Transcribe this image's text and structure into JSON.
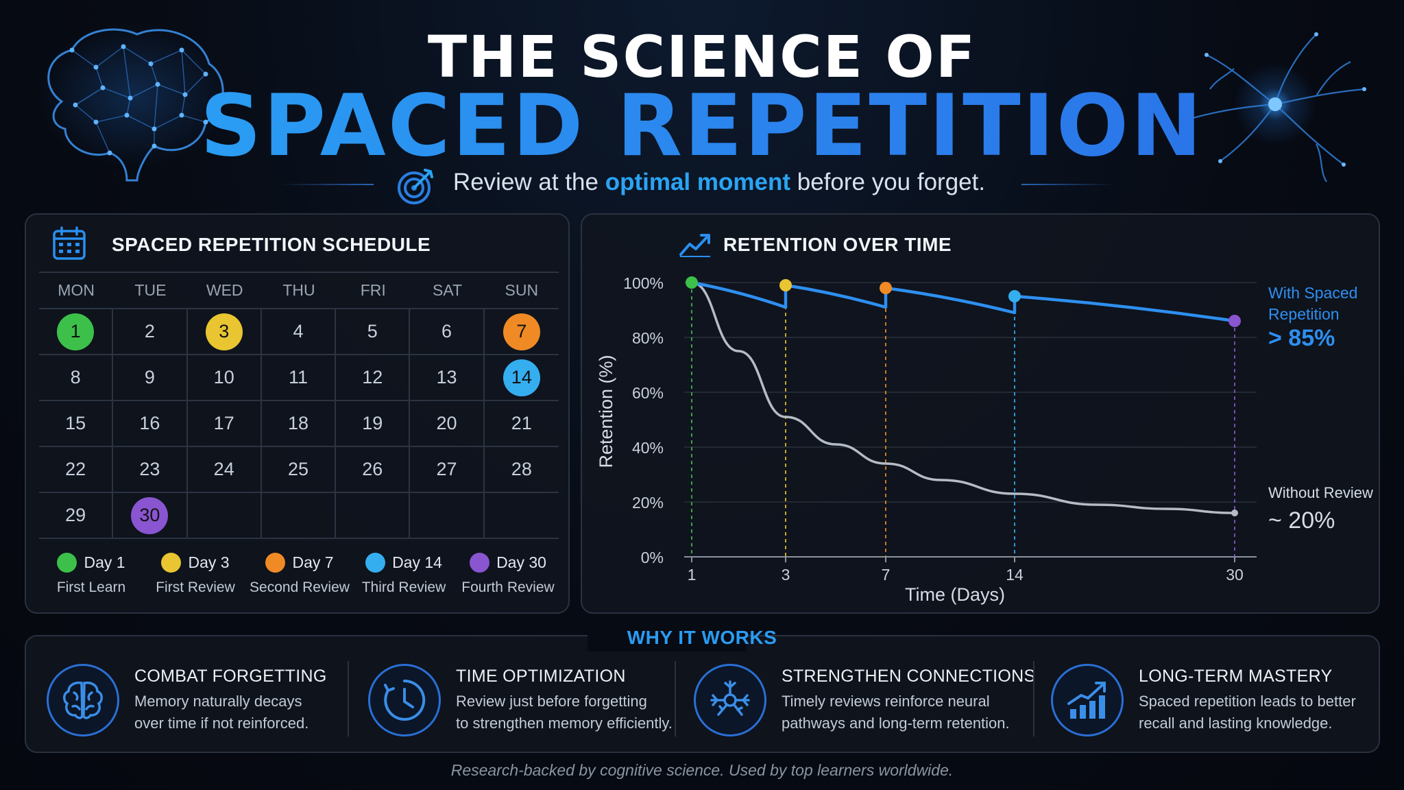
{
  "header": {
    "title_top": "THE SCIENCE OF",
    "title_main": "SPACED REPETITION",
    "tagline_pre": "Review at the ",
    "tagline_highlight": "optimal moment",
    "tagline_post": " before you forget.",
    "icons": [
      "brain-network-icon",
      "neuron-icon",
      "target-icon"
    ]
  },
  "schedule": {
    "title": "SPACED REPETITION SCHEDULE",
    "icon": "calendar-icon",
    "weekdays": [
      "MON",
      "TUE",
      "WED",
      "THU",
      "FRI",
      "SAT",
      "SUN"
    ],
    "weeks": [
      [
        "1",
        "2",
        "3",
        "4",
        "5",
        "6",
        "7"
      ],
      [
        "8",
        "9",
        "10",
        "11",
        "12",
        "13",
        "14"
      ],
      [
        "15",
        "16",
        "17",
        "18",
        "19",
        "20",
        "21"
      ],
      [
        "22",
        "23",
        "24",
        "25",
        "26",
        "27",
        "28"
      ],
      [
        "29",
        "30",
        "",
        "",
        "",
        "",
        ""
      ]
    ],
    "highlights": {
      "1": "#3cc04a",
      "3": "#e8c531",
      "7": "#f08a25",
      "14": "#35aef0",
      "30": "#8a55d0"
    },
    "legend": [
      {
        "day": "Day 1",
        "label": "First Learn",
        "color": "#3cc04a"
      },
      {
        "day": "Day 3",
        "label": "First Review",
        "color": "#e8c531"
      },
      {
        "day": "Day 7",
        "label": "Second Review",
        "color": "#f08a25"
      },
      {
        "day": "Day 14",
        "label": "Third Review",
        "color": "#35aef0"
      },
      {
        "day": "Day 30",
        "label": "Fourth Review",
        "color": "#8a55d0"
      }
    ]
  },
  "chart_data": {
    "type": "line",
    "title": "RETENTION OVER TIME",
    "icon": "trend-up-icon",
    "xlabel": "Time (Days)",
    "ylabel": "Retention (%)",
    "x_ticks": [
      "1",
      "3",
      "7",
      "14",
      "30"
    ],
    "y_ticks": [
      "0%",
      "20%",
      "40%",
      "60%",
      "80%",
      "100%"
    ],
    "ylim": [
      0,
      100
    ],
    "grid": true,
    "series": [
      {
        "name": "With Spaced Repetition",
        "color": "#2e8ff0",
        "review_days": [
          1,
          3,
          7,
          14,
          30
        ],
        "review_colors": [
          "#3cc04a",
          "#e8c531",
          "#f08a25",
          "#35aef0",
          "#8a55d0"
        ],
        "points": [
          [
            1,
            100
          ],
          [
            3,
            91
          ],
          [
            3,
            99
          ],
          [
            7,
            91
          ],
          [
            7,
            98
          ],
          [
            14,
            89
          ],
          [
            14,
            95
          ],
          [
            30,
            86
          ]
        ]
      },
      {
        "name": "Without Review",
        "color": "#b5bcc6",
        "points": [
          [
            1,
            100
          ],
          [
            2,
            75
          ],
          [
            3,
            51
          ],
          [
            5,
            41
          ],
          [
            7,
            34
          ],
          [
            10,
            28
          ],
          [
            14,
            23
          ],
          [
            20,
            19
          ],
          [
            25,
            17.5
          ],
          [
            30,
            16
          ]
        ]
      }
    ],
    "annotations": {
      "blue_label_1": "With Spaced",
      "blue_label_2": "Repetition",
      "blue_value": "> 85%",
      "grey_label": "Without Review",
      "grey_value": "~ 20%"
    }
  },
  "why": {
    "title": "WHY IT WORKS",
    "features": [
      {
        "icon": "brain-icon",
        "title": "COMBAT FORGETTING",
        "line1": "Memory naturally decays",
        "line2": "over time if not reinforced."
      },
      {
        "icon": "clock-icon",
        "title": "TIME OPTIMIZATION",
        "line1": "Review just before forgetting",
        "line2": "to strengthen memory efficiently."
      },
      {
        "icon": "neuron-icon",
        "title": "STRENGTHEN CONNECTIONS",
        "line1": "Timely reviews reinforce neural",
        "line2": "pathways and long-term retention."
      },
      {
        "icon": "growth-chart-icon",
        "title": "LONG-TERM MASTERY",
        "line1": "Spaced repetition leads to better",
        "line2": "recall and lasting knowledge."
      }
    ]
  },
  "footer": "Research-backed by cognitive science. Used by top learners worldwide."
}
